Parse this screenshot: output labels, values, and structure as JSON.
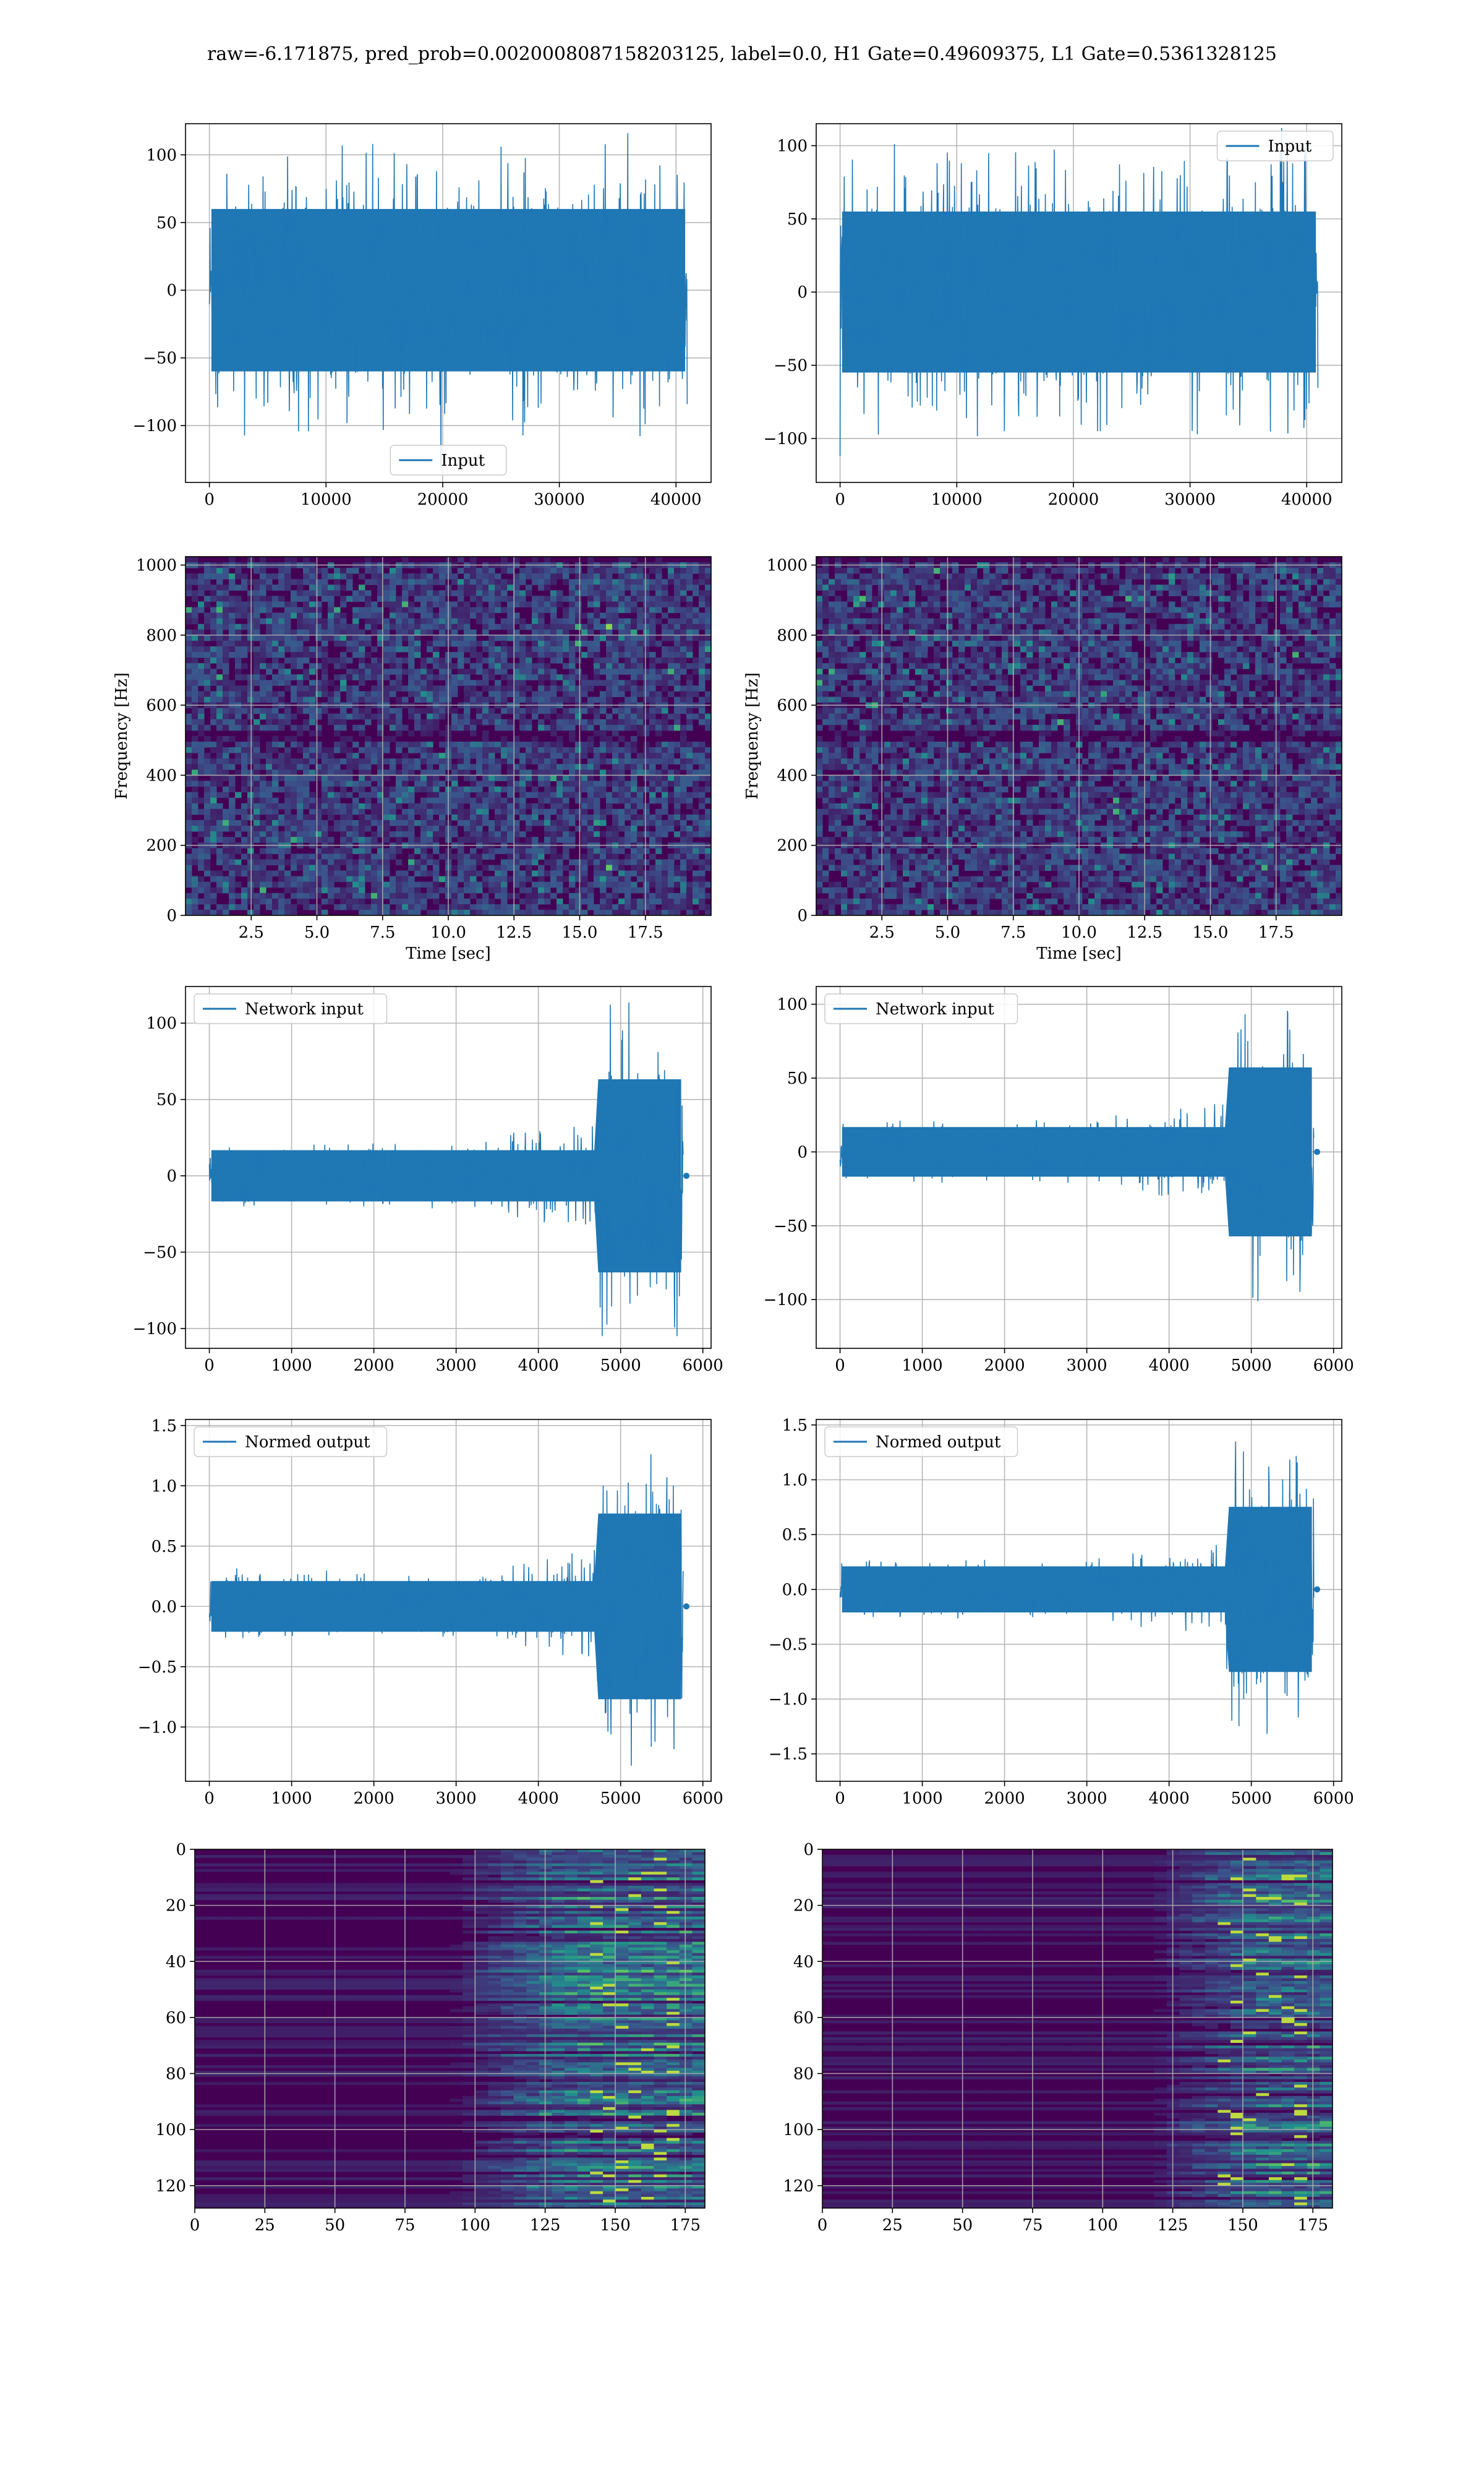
{
  "suptitle": "raw=-6.171875, pred_prob=0.0020008087158203125, label=0.0, H1 Gate=0.49609375, L1 Gate=0.5361328125",
  "colors": {
    "series": "#1f77b4",
    "grid": "#b0b0b0",
    "viridis_low": "#440154",
    "viridis_mid": "#21918c",
    "viridis_high": "#fde725"
  },
  "chart_data": [
    {
      "id": "input-h1",
      "type": "line",
      "legend": "Input",
      "legend_loc": "lower center",
      "xlim": [
        -2048,
        43008
      ],
      "ylim": [
        -142,
        123
      ],
      "xticks": [
        0,
        10000,
        20000,
        30000,
        40000
      ],
      "yticks": [
        -100,
        -50,
        0,
        50,
        100
      ],
      "grid": true,
      "n_samples": 40960,
      "envelope": {
        "x_start": 0,
        "x_end": 40960,
        "max_approx": 116,
        "min_approx": -131,
        "bulk_amp": 60
      }
    },
    {
      "id": "input-l1",
      "type": "line",
      "legend": "Input",
      "legend_loc": "upper right",
      "xlim": [
        -2048,
        43008
      ],
      "ylim": [
        -130,
        115
      ],
      "xticks": [
        0,
        10000,
        20000,
        30000,
        40000
      ],
      "yticks": [
        -100,
        -50,
        0,
        50,
        100
      ],
      "grid": true,
      "n_samples": 40960,
      "envelope": {
        "x_start": 0,
        "x_end": 40960,
        "max_approx": 112,
        "min_approx": -112,
        "bulk_amp": 55
      }
    },
    {
      "id": "spec-h1",
      "type": "heatmap",
      "colormap": "viridis",
      "xlim": [
        0,
        20
      ],
      "ylim": [
        0,
        1024
      ],
      "xticks": [
        2.5,
        5.0,
        7.5,
        10.0,
        12.5,
        15.0,
        17.5
      ],
      "yticks": [
        0,
        200,
        400,
        600,
        800,
        1000
      ],
      "xlabel": "Time [sec]",
      "ylabel": "Frequency [Hz]",
      "grid": true
    },
    {
      "id": "spec-l1",
      "type": "heatmap",
      "colormap": "viridis",
      "xlim": [
        0,
        20
      ],
      "ylim": [
        0,
        1024
      ],
      "xticks": [
        2.5,
        5.0,
        7.5,
        10.0,
        12.5,
        15.0,
        17.5
      ],
      "yticks": [
        0,
        200,
        400,
        600,
        800,
        1000
      ],
      "xlabel": "Time [sec]",
      "ylabel": "Frequency [Hz]",
      "grid": true
    },
    {
      "id": "netin-h1",
      "type": "line",
      "legend": "Network input",
      "legend_loc": "upper left",
      "xlim": [
        -290,
        6100
      ],
      "ylim": [
        -113,
        124
      ],
      "xticks": [
        0,
        1000,
        2000,
        3000,
        4000,
        5000,
        6000
      ],
      "yticks": [
        -100,
        -50,
        0,
        50,
        100
      ],
      "grid": true,
      "n_samples": 5760,
      "envelope": {
        "x_start": 0,
        "x_end": 5760,
        "tail_end": 5800,
        "max_approx": 115,
        "min_approx": -105,
        "burst_start": 4700,
        "base_amp": 12
      }
    },
    {
      "id": "netin-l1",
      "type": "line",
      "legend": "Network input",
      "legend_loc": "upper left",
      "xlim": [
        -290,
        6100
      ],
      "ylim": [
        -133,
        112
      ],
      "xticks": [
        0,
        1000,
        2000,
        3000,
        4000,
        5000,
        6000
      ],
      "yticks": [
        -100,
        -50,
        0,
        50,
        100
      ],
      "grid": true,
      "n_samples": 5760,
      "envelope": {
        "x_start": 0,
        "x_end": 5760,
        "tail_end": 5800,
        "max_approx": 104,
        "min_approx": -118,
        "burst_start": 4700,
        "base_amp": 12
      }
    },
    {
      "id": "normed-h1",
      "type": "line",
      "legend": "Normed output",
      "legend_loc": "upper left",
      "xlim": [
        -290,
        6100
      ],
      "ylim": [
        -1.45,
        1.55
      ],
      "xticks": [
        0,
        1000,
        2000,
        3000,
        4000,
        5000,
        6000
      ],
      "yticks": [
        -1.0,
        -0.5,
        0.0,
        0.5,
        1.0,
        1.5
      ],
      "grid": true,
      "n_samples": 5760,
      "envelope": {
        "x_start": 0,
        "x_end": 5760,
        "tail_end": 5800,
        "max_approx": 1.4,
        "min_approx": -1.32,
        "burst_start": 4700,
        "base_amp": 0.15
      }
    },
    {
      "id": "normed-l1",
      "type": "line",
      "legend": "Normed output",
      "legend_loc": "upper left",
      "xlim": [
        -290,
        6100
      ],
      "ylim": [
        -1.75,
        1.55
      ],
      "xticks": [
        0,
        1000,
        2000,
        3000,
        4000,
        5000,
        6000
      ],
      "yticks": [
        -1.5,
        -1.0,
        -0.5,
        0.0,
        0.5,
        1.0,
        1.5
      ],
      "grid": true,
      "n_samples": 5760,
      "envelope": {
        "x_start": 0,
        "x_end": 5760,
        "tail_end": 5800,
        "max_approx": 1.37,
        "min_approx": -1.62,
        "burst_start": 4700,
        "base_amp": 0.15
      }
    },
    {
      "id": "feat-h1",
      "type": "heatmap",
      "colormap": "viridis",
      "xlim": [
        0,
        182
      ],
      "ylim": [
        128,
        0
      ],
      "xticks": [
        0,
        25,
        50,
        75,
        100,
        125,
        150,
        175
      ],
      "yticks": [
        0,
        20,
        40,
        60,
        80,
        100,
        120
      ],
      "grid": true,
      "active_region_start": 100
    },
    {
      "id": "feat-l1",
      "type": "heatmap",
      "colormap": "viridis",
      "xlim": [
        0,
        182
      ],
      "ylim": [
        128,
        0
      ],
      "xticks": [
        0,
        25,
        50,
        75,
        100,
        125,
        150,
        175
      ],
      "yticks": [
        0,
        20,
        40,
        60,
        80,
        100,
        120
      ],
      "grid": true,
      "active_region_start": 125
    }
  ]
}
